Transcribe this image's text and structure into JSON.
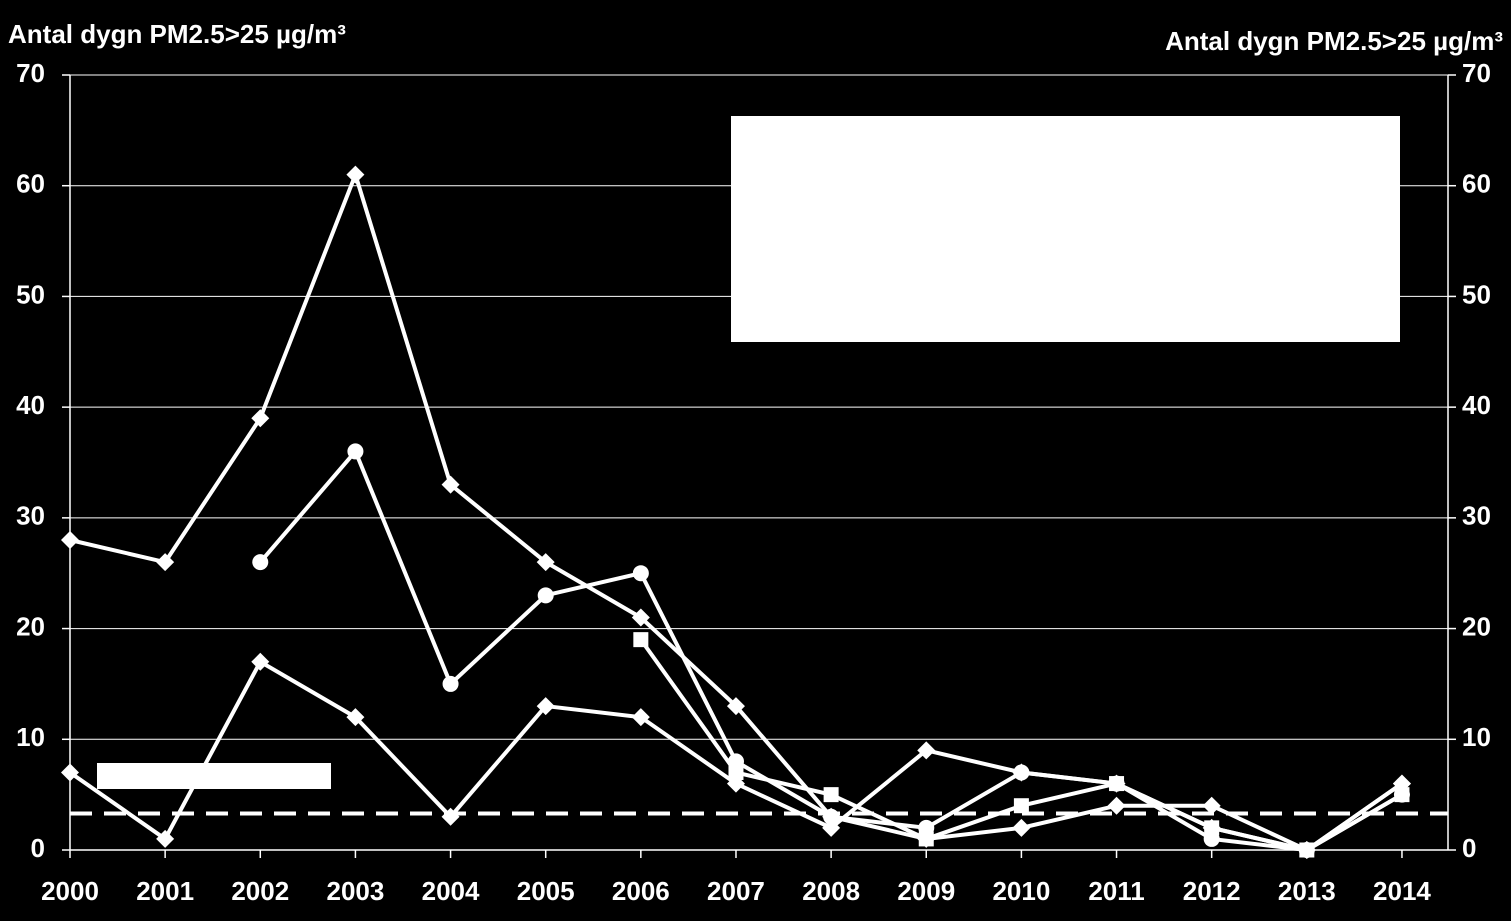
{
  "chart_data": {
    "type": "line",
    "y_label": "Antal dygn PM2.5>25 µg/m³",
    "y2_label": "Antal dygn PM2.5>25 µg/m³",
    "categories": [
      "2000",
      "2001",
      "2002",
      "2003",
      "2004",
      "2005",
      "2006",
      "2007",
      "2008",
      "2009",
      "2010",
      "2011",
      "2012",
      "2013",
      "2014"
    ],
    "series": [
      {
        "color": "#ffffff",
        "marker": "diamond",
        "values": [
          28,
          26,
          39,
          61,
          33,
          26,
          21,
          13,
          3,
          1,
          2,
          4,
          4,
          0,
          6
        ]
      },
      {
        "color": "#ffffff",
        "marker": "circle",
        "values": [
          null,
          null,
          26,
          36,
          15,
          23,
          25,
          8,
          3,
          2,
          7,
          6,
          1,
          0,
          5
        ]
      },
      {
        "color": "#ffffff",
        "marker": "diamond",
        "values": [
          7,
          1,
          17,
          12,
          3,
          13,
          12,
          6,
          2,
          9,
          7,
          6,
          2,
          0,
          6
        ]
      },
      {
        "color": "#ffffff",
        "marker": "square",
        "values": [
          null,
          null,
          null,
          null,
          null,
          null,
          19,
          7,
          5,
          1,
          4,
          6,
          2,
          0,
          5
        ]
      }
    ],
    "threshold_line": 3.3,
    "ylim": [
      0,
      70
    ],
    "yticks": [
      0,
      10,
      20,
      30,
      40,
      50,
      60,
      70
    ],
    "y2lim": [
      0,
      70
    ],
    "y2ticks": [
      0,
      10,
      20,
      30,
      40,
      50,
      60,
      70
    ],
    "grid": true
  }
}
